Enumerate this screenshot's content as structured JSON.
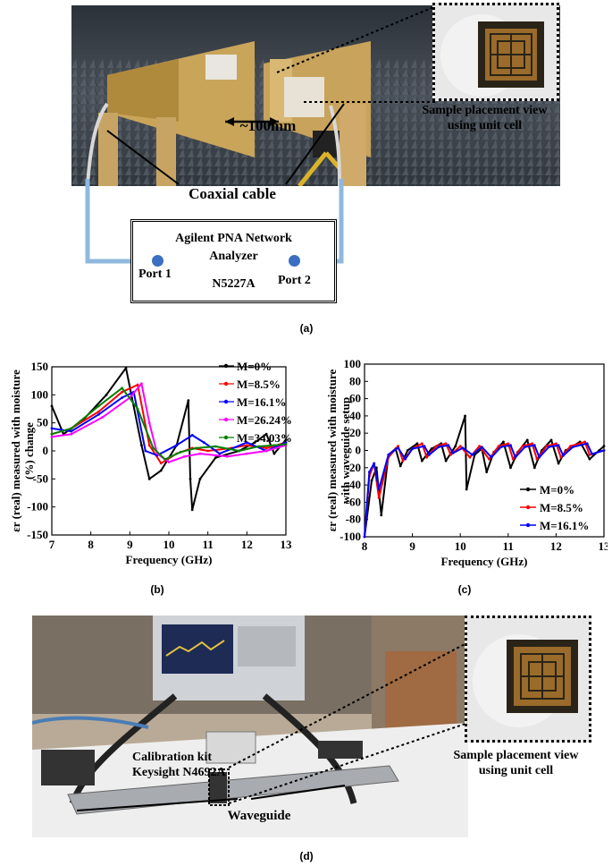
{
  "panel_a": {
    "label": "(a)",
    "distance": "~100mm",
    "coax": "Coaxial cable",
    "analyzer": [
      "Agilent PNA Network",
      "Analyzer",
      "N5227A"
    ],
    "port1": "Port 1",
    "port2": "Port 2",
    "inset": [
      "Sample placement view",
      "using unit cell"
    ]
  },
  "panel_b": {
    "label": "(b)"
  },
  "panel_c": {
    "label": "(c)"
  },
  "panel_d": {
    "label": "(d)",
    "calib": [
      "Calibration kit",
      "Keysight N4692A"
    ],
    "waveguide": "Waveguide",
    "inset": [
      "Sample placement view",
      "using unit cell"
    ]
  },
  "colors": {
    "black": "#000000",
    "red": "#ff0000",
    "blue": "#0000ff",
    "magenta": "#ff00ff",
    "green": "#008000",
    "cable": "#8fb8de",
    "port": "#3b6fc2"
  },
  "chart_data": [
    {
      "type": "line",
      "id": "b",
      "xlabel": "Frequency (GHz)",
      "ylabel": "εr (real) measured with moisture (%) change",
      "xlim": [
        7,
        13
      ],
      "ylim": [
        -150,
        150
      ],
      "xticks": [
        "7",
        "8",
        "9",
        "10",
        "11",
        "12",
        "13"
      ],
      "yticks": [
        "-150",
        "-100",
        "-50",
        "0",
        "50",
        "100",
        "150"
      ],
      "legend": "top-right",
      "series": [
        {
          "name": "M=0%",
          "color": "#000000",
          "points": [
            [
              7,
              80
            ],
            [
              7.3,
              30
            ],
            [
              7.8,
              55
            ],
            [
              8.4,
              100
            ],
            [
              8.9,
              148
            ],
            [
              9.3,
              10
            ],
            [
              9.5,
              -50
            ],
            [
              9.8,
              -35
            ],
            [
              10.2,
              10
            ],
            [
              10.5,
              90
            ],
            [
              10.55,
              -50
            ],
            [
              10.6,
              -105
            ],
            [
              10.8,
              -50
            ],
            [
              11.2,
              -12
            ],
            [
              11.8,
              0
            ],
            [
              12.2,
              15
            ],
            [
              12.5,
              30
            ],
            [
              12.7,
              -5
            ],
            [
              13,
              20
            ]
          ]
        },
        {
          "name": "M=8.5%",
          "color": "#ff0000",
          "points": [
            [
              7,
              30
            ],
            [
              7.5,
              40
            ],
            [
              8.2,
              70
            ],
            [
              8.8,
              105
            ],
            [
              9.2,
              118
            ],
            [
              9.5,
              10
            ],
            [
              9.8,
              -22
            ],
            [
              10.2,
              -5
            ],
            [
              10.6,
              5
            ],
            [
              11,
              0
            ],
            [
              11.6,
              5
            ],
            [
              12,
              10
            ],
            [
              12.5,
              5
            ],
            [
              13,
              15
            ]
          ]
        },
        {
          "name": "M=16.1%",
          "color": "#0000ff",
          "points": [
            [
              7,
              40
            ],
            [
              7.5,
              35
            ],
            [
              8.2,
              65
            ],
            [
              8.8,
              95
            ],
            [
              9.1,
              105
            ],
            [
              9.4,
              0
            ],
            [
              9.7,
              -8
            ],
            [
              10.2,
              10
            ],
            [
              10.6,
              28
            ],
            [
              10.9,
              15
            ],
            [
              11.3,
              -5
            ],
            [
              12,
              15
            ],
            [
              12.5,
              0
            ],
            [
              13,
              15
            ]
          ]
        },
        {
          "name": "M=26.24%",
          "color": "#ff00ff",
          "points": [
            [
              7,
              25
            ],
            [
              7.5,
              30
            ],
            [
              8.3,
              60
            ],
            [
              9,
              95
            ],
            [
              9.3,
              120
            ],
            [
              9.5,
              50
            ],
            [
              9.7,
              -5
            ],
            [
              10,
              -20
            ],
            [
              10.4,
              -10
            ],
            [
              10.8,
              -5
            ],
            [
              11.5,
              -10
            ],
            [
              12,
              -5
            ],
            [
              12.5,
              0
            ],
            [
              13,
              10
            ]
          ]
        },
        {
          "name": "M=34.03%",
          "color": "#008000",
          "points": [
            [
              7,
              30
            ],
            [
              7.5,
              40
            ],
            [
              8.2,
              80
            ],
            [
              8.8,
              112
            ],
            [
              9.2,
              75
            ],
            [
              9.6,
              5
            ],
            [
              9.9,
              -15
            ],
            [
              10.3,
              -2
            ],
            [
              10.7,
              5
            ],
            [
              11.2,
              8
            ],
            [
              11.8,
              0
            ],
            [
              12.3,
              8
            ],
            [
              12.7,
              10
            ],
            [
              13,
              12
            ]
          ]
        }
      ]
    },
    {
      "type": "line",
      "id": "c",
      "xlabel": "Frequency (GHz)",
      "ylabel": "εr (real) measured with moisture with waveguide setup",
      "xlim": [
        8,
        13
      ],
      "ylim": [
        -100,
        100
      ],
      "xticks": [
        "8",
        "9",
        "10",
        "11",
        "12",
        "13"
      ],
      "yticks": [
        "-100",
        "-80",
        "-60",
        "-40",
        "-20",
        "0",
        "20",
        "40",
        "60",
        "80",
        "100"
      ],
      "legend": "bottom-right",
      "series": [
        {
          "name": "M=0%",
          "color": "#000000",
          "points": [
            [
              8,
              -100
            ],
            [
              8.15,
              -35
            ],
            [
              8.25,
              -20
            ],
            [
              8.35,
              -75
            ],
            [
              8.5,
              -5
            ],
            [
              8.65,
              2
            ],
            [
              8.75,
              -18
            ],
            [
              8.9,
              0
            ],
            [
              9.1,
              8
            ],
            [
              9.2,
              -12
            ],
            [
              9.4,
              2
            ],
            [
              9.6,
              8
            ],
            [
              9.7,
              -12
            ],
            [
              9.9,
              5
            ],
            [
              10.1,
              40
            ],
            [
              10.13,
              -45
            ],
            [
              10.3,
              -5
            ],
            [
              10.45,
              2
            ],
            [
              10.55,
              -25
            ],
            [
              10.7,
              -2
            ],
            [
              10.9,
              10
            ],
            [
              11.05,
              -20
            ],
            [
              11.2,
              -2
            ],
            [
              11.4,
              12
            ],
            [
              11.55,
              -20
            ],
            [
              11.7,
              0
            ],
            [
              11.9,
              12
            ],
            [
              12.05,
              -15
            ],
            [
              12.2,
              0
            ],
            [
              12.5,
              10
            ],
            [
              12.7,
              -10
            ],
            [
              12.9,
              0
            ],
            [
              13,
              5
            ]
          ]
        },
        {
          "name": "M=8.5%",
          "color": "#ff0000",
          "points": [
            [
              8,
              -100
            ],
            [
              8.1,
              -30
            ],
            [
              8.2,
              -15
            ],
            [
              8.3,
              -55
            ],
            [
              8.5,
              -8
            ],
            [
              8.7,
              5
            ],
            [
              8.8,
              -12
            ],
            [
              9.0,
              2
            ],
            [
              9.2,
              8
            ],
            [
              9.3,
              -8
            ],
            [
              9.5,
              5
            ],
            [
              9.7,
              8
            ],
            [
              9.8,
              -5
            ],
            [
              10,
              5
            ],
            [
              10.2,
              -8
            ],
            [
              10.4,
              5
            ],
            [
              10.6,
              -10
            ],
            [
              10.8,
              5
            ],
            [
              11,
              8
            ],
            [
              11.1,
              -10
            ],
            [
              11.3,
              5
            ],
            [
              11.5,
              8
            ],
            [
              11.6,
              -10
            ],
            [
              11.8,
              5
            ],
            [
              12,
              8
            ],
            [
              12.1,
              -8
            ],
            [
              12.3,
              5
            ],
            [
              12.6,
              10
            ],
            [
              12.7,
              -5
            ],
            [
              13,
              0
            ]
          ]
        },
        {
          "name": "M=16.1%",
          "color": "#0000ff",
          "points": [
            [
              8,
              -100
            ],
            [
              8.1,
              -25
            ],
            [
              8.2,
              -15
            ],
            [
              8.3,
              -45
            ],
            [
              8.5,
              -5
            ],
            [
              8.7,
              3
            ],
            [
              8.85,
              -10
            ],
            [
              9.0,
              2
            ],
            [
              9.25,
              5
            ],
            [
              9.35,
              -5
            ],
            [
              9.55,
              4
            ],
            [
              9.75,
              6
            ],
            [
              9.85,
              -3
            ],
            [
              10.05,
              3
            ],
            [
              10.25,
              -5
            ],
            [
              10.45,
              4
            ],
            [
              10.65,
              -8
            ],
            [
              10.85,
              4
            ],
            [
              11.05,
              6
            ],
            [
              11.15,
              -8
            ],
            [
              11.35,
              4
            ],
            [
              11.55,
              6
            ],
            [
              11.65,
              -8
            ],
            [
              11.85,
              4
            ],
            [
              12.05,
              6
            ],
            [
              12.15,
              -6
            ],
            [
              12.35,
              4
            ],
            [
              12.65,
              8
            ],
            [
              12.75,
              -4
            ],
            [
              13,
              0
            ]
          ]
        }
      ]
    }
  ]
}
